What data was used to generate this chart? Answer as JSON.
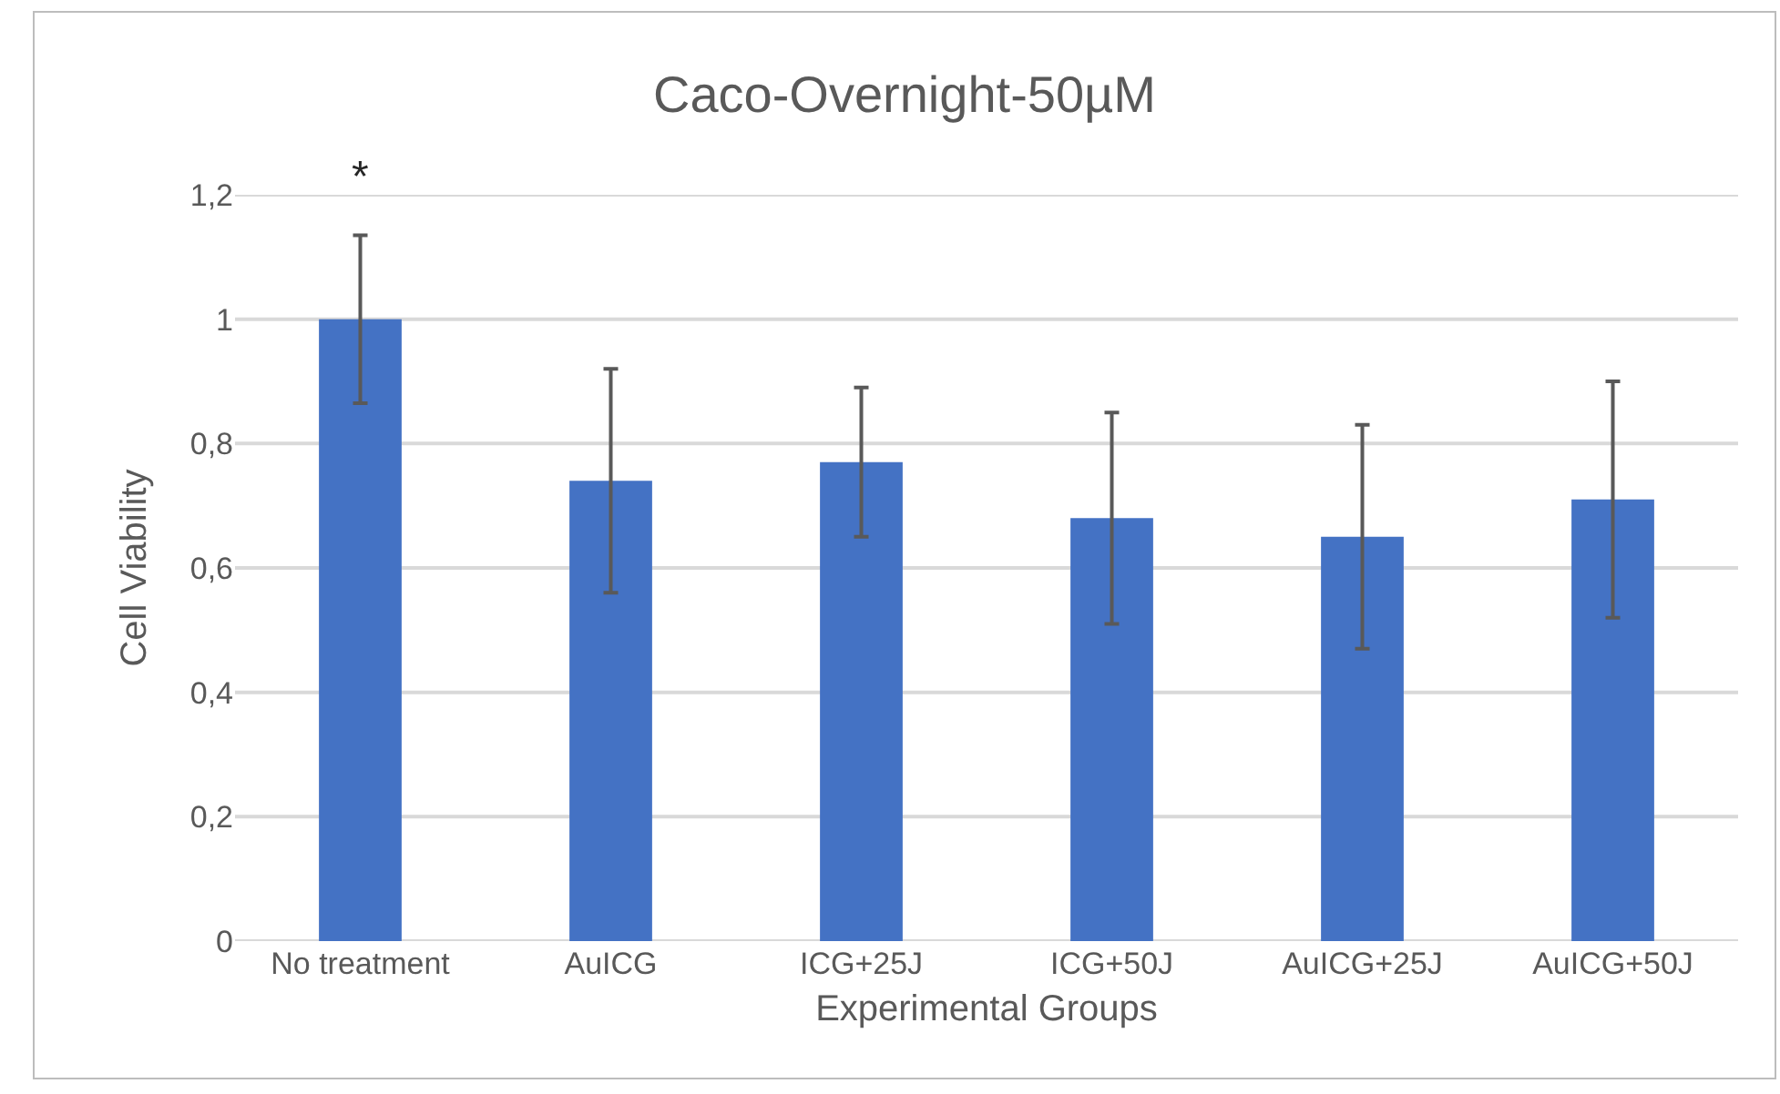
{
  "chart_data": {
    "type": "bar",
    "title": "Caco-Overnight-50µM",
    "xlabel": "Experimental Groups",
    "ylabel": "Cell Viability",
    "categories": [
      "No treatment",
      "AuICG",
      "ICG+25J",
      "ICG+50J",
      "AuICG+25J",
      "AuICG+50J"
    ],
    "values": [
      1.0,
      0.74,
      0.77,
      0.68,
      0.65,
      0.71
    ],
    "errors": [
      0.135,
      0.18,
      0.12,
      0.17,
      0.18,
      0.19
    ],
    "color": "#4472c4",
    "ylim": [
      0,
      1.2
    ],
    "yticks": [
      0,
      {
        "value": 0.2,
        "label": "0,2"
      },
      {
        "value": 0.4,
        "label": "0,4"
      },
      {
        "value": 0.6,
        "label": "0,6"
      },
      {
        "value": 0.8,
        "label": "0,8"
      },
      1,
      {
        "value": 1.2,
        "label": "1,2"
      }
    ],
    "grid": "y",
    "annotations": [
      "*"
    ]
  }
}
